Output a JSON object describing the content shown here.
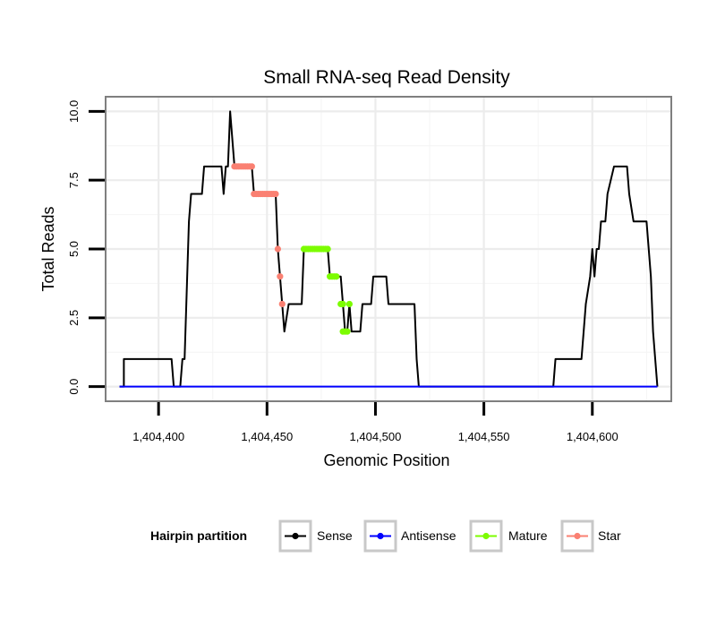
{
  "chart_data": {
    "type": "line",
    "title": "Small RNA-seq Read Density",
    "xlabel": "Genomic Position",
    "ylabel": "Total Reads",
    "xlim": [
      1404376,
      1404636
    ],
    "ylim": [
      -0.5,
      10.5
    ],
    "x_ticks": [
      1404400,
      1404450,
      1404500,
      1404550,
      1404600
    ],
    "x_tick_labels": [
      "1,404,400",
      "1,404,450",
      "1,404,500",
      "1,404,550",
      "1,404,600"
    ],
    "y_ticks": [
      0,
      2.5,
      5,
      7.5,
      10
    ],
    "y_tick_labels": [
      "0.0",
      "2.5",
      "5.0",
      "7.5",
      "10.0"
    ],
    "grid": true,
    "legend": {
      "title": "Hairpin partition",
      "position": "bottom",
      "entries": [
        {
          "label": "Sense",
          "color": "#000000"
        },
        {
          "label": "Antisense",
          "color": "#0000ff"
        },
        {
          "label": "Mature",
          "color": "#7cfc00"
        },
        {
          "label": "Star",
          "color": "#fa8072"
        }
      ]
    },
    "series": [
      {
        "name": "Sense",
        "color": "#000000",
        "kind": "line",
        "points": [
          [
            1404382,
            0
          ],
          [
            1404384,
            0
          ],
          [
            1404384,
            1
          ],
          [
            1404406,
            1
          ],
          [
            1404407,
            0
          ],
          [
            1404410,
            0
          ],
          [
            1404411,
            1
          ],
          [
            1404412,
            1
          ],
          [
            1404414,
            6
          ],
          [
            1404415,
            7
          ],
          [
            1404420,
            7
          ],
          [
            1404421,
            8
          ],
          [
            1404429,
            8
          ],
          [
            1404430,
            7
          ],
          [
            1404431,
            8
          ],
          [
            1404432,
            8
          ],
          [
            1404433,
            10
          ],
          [
            1404435,
            8
          ],
          [
            1404443,
            8
          ],
          [
            1404444,
            7
          ],
          [
            1404454,
            7
          ],
          [
            1404455,
            5
          ],
          [
            1404457,
            3
          ],
          [
            1404458,
            2
          ],
          [
            1404460,
            3
          ],
          [
            1404466,
            3
          ],
          [
            1404467,
            5
          ],
          [
            1404478,
            5
          ],
          [
            1404479,
            4
          ],
          [
            1404484,
            4
          ],
          [
            1404485,
            3
          ],
          [
            1404486,
            2
          ],
          [
            1404487,
            2
          ],
          [
            1404488,
            3
          ],
          [
            1404489,
            2
          ],
          [
            1404493,
            2
          ],
          [
            1404494,
            3
          ],
          [
            1404498,
            3
          ],
          [
            1404499,
            4
          ],
          [
            1404505,
            4
          ],
          [
            1404506,
            3
          ],
          [
            1404518,
            3
          ],
          [
            1404519,
            1
          ],
          [
            1404520,
            0
          ],
          [
            1404582,
            0
          ],
          [
            1404583,
            1
          ],
          [
            1404595,
            1
          ],
          [
            1404596,
            2
          ],
          [
            1404597,
            3
          ],
          [
            1404599,
            4
          ],
          [
            1404600,
            5
          ],
          [
            1404601,
            4
          ],
          [
            1404602,
            5
          ],
          [
            1404603,
            5
          ],
          [
            1404604,
            6
          ],
          [
            1404606,
            6
          ],
          [
            1404607,
            7
          ],
          [
            1404610,
            8
          ],
          [
            1404616,
            8
          ],
          [
            1404617,
            7
          ],
          [
            1404619,
            6
          ],
          [
            1404625,
            6
          ],
          [
            1404626,
            5
          ],
          [
            1404627,
            4
          ],
          [
            1404628,
            2
          ],
          [
            1404629,
            1
          ],
          [
            1404630,
            0
          ]
        ]
      },
      {
        "name": "Antisense",
        "color": "#0000ff",
        "kind": "line",
        "points": [
          [
            1404382,
            0
          ],
          [
            1404630,
            0
          ]
        ]
      },
      {
        "name": "Mature",
        "color": "#7cfc00",
        "kind": "points",
        "points": [
          [
            1404467,
            5
          ],
          [
            1404468,
            5
          ],
          [
            1404469,
            5
          ],
          [
            1404470,
            5
          ],
          [
            1404471,
            5
          ],
          [
            1404472,
            5
          ],
          [
            1404473,
            5
          ],
          [
            1404474,
            5
          ],
          [
            1404475,
            5
          ],
          [
            1404476,
            5
          ],
          [
            1404477,
            5
          ],
          [
            1404478,
            5
          ],
          [
            1404479,
            4
          ],
          [
            1404480,
            4
          ],
          [
            1404481,
            4
          ],
          [
            1404482,
            4
          ],
          [
            1404484,
            3
          ],
          [
            1404485,
            3
          ],
          [
            1404485,
            2
          ],
          [
            1404486,
            2
          ],
          [
            1404487,
            2
          ],
          [
            1404488,
            3
          ]
        ]
      },
      {
        "name": "Star",
        "color": "#fa8072",
        "kind": "points",
        "points": [
          [
            1404435,
            8
          ],
          [
            1404436,
            8
          ],
          [
            1404437,
            8
          ],
          [
            1404438,
            8
          ],
          [
            1404439,
            8
          ],
          [
            1404440,
            8
          ],
          [
            1404441,
            8
          ],
          [
            1404442,
            8
          ],
          [
            1404443,
            8
          ],
          [
            1404444,
            7
          ],
          [
            1404445,
            7
          ],
          [
            1404446,
            7
          ],
          [
            1404447,
            7
          ],
          [
            1404448,
            7
          ],
          [
            1404449,
            7
          ],
          [
            1404450,
            7
          ],
          [
            1404451,
            7
          ],
          [
            1404452,
            7
          ],
          [
            1404453,
            7
          ],
          [
            1404454,
            7
          ],
          [
            1404455,
            5
          ],
          [
            1404456,
            4
          ],
          [
            1404457,
            3
          ]
        ]
      }
    ]
  }
}
